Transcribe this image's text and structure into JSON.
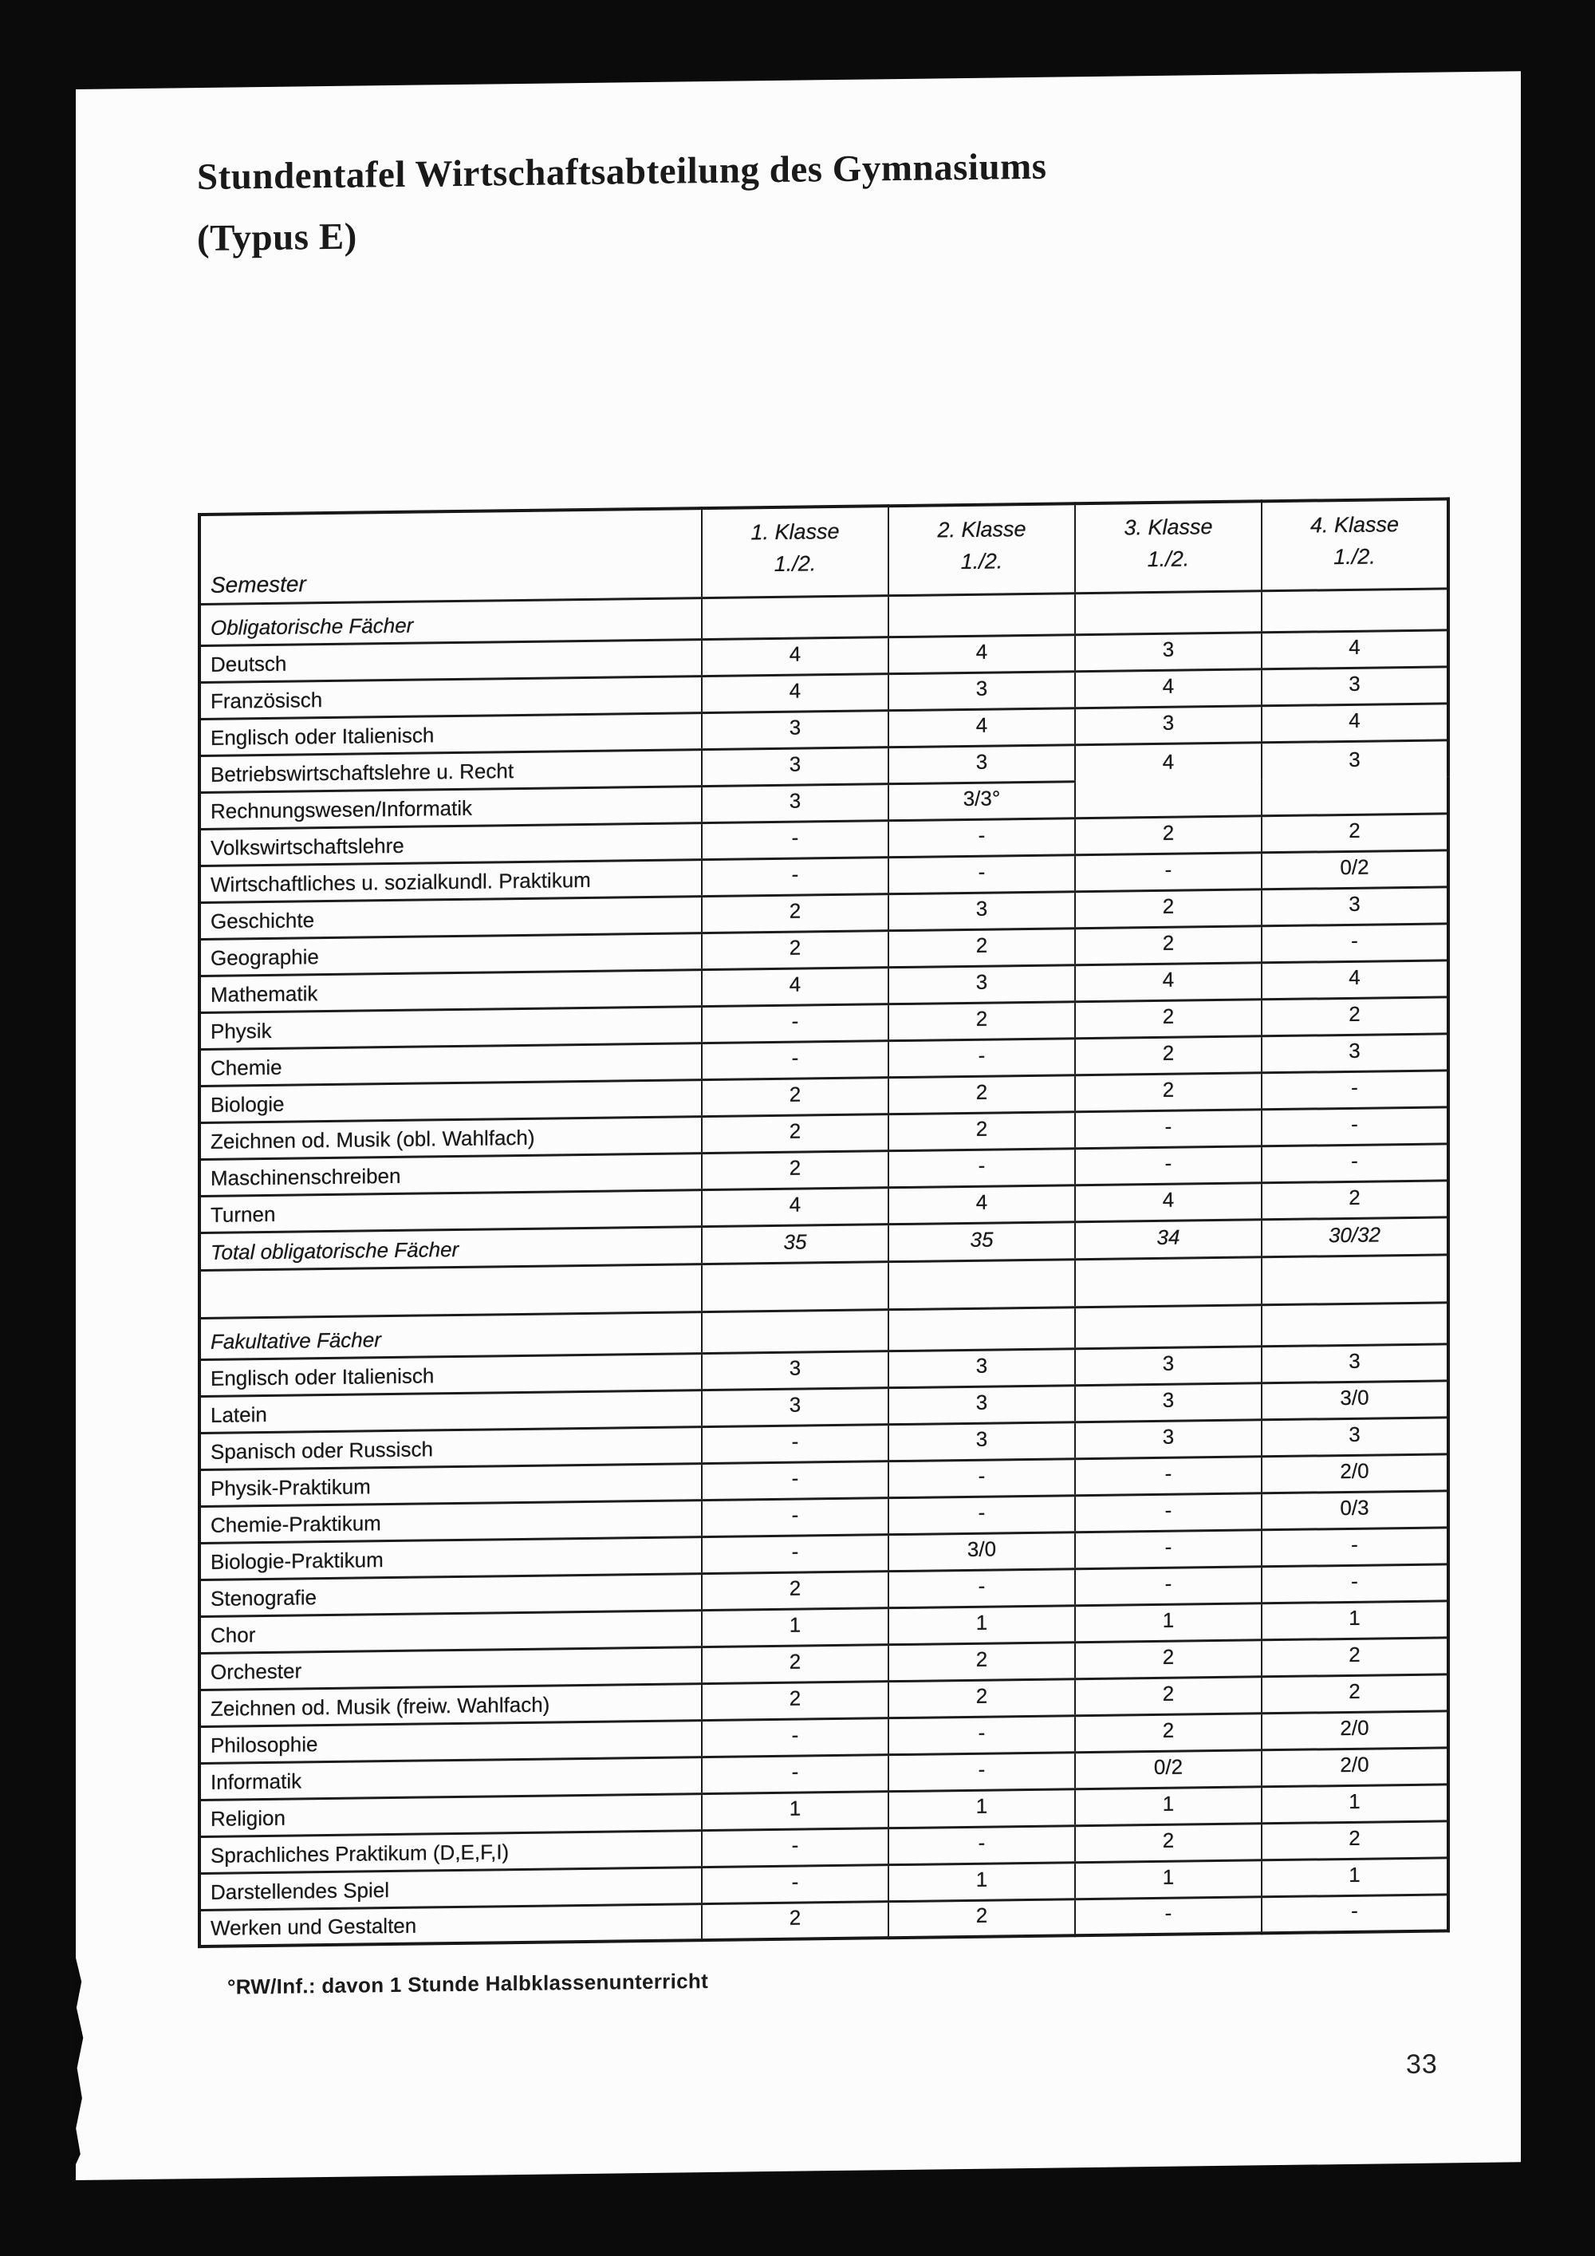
{
  "page": {
    "title_line1": "Stundentafel Wirtschaftsabteilung des Gymnasiums",
    "title_line2": "(Typus E)",
    "footnote": "°RW/Inf.: davon 1 Stunde Halbklassenunterricht",
    "page_number": "33"
  },
  "table": {
    "corner_label": "Semester",
    "columns": [
      {
        "line1": "1. Klasse",
        "line2": "1./2."
      },
      {
        "line1": "2. Klasse",
        "line2": "1./2."
      },
      {
        "line1": "3. Klasse",
        "line2": "1./2."
      },
      {
        "line1": "4. Klasse",
        "line2": "1./2."
      }
    ],
    "rows": [
      {
        "type": "section",
        "label": "Obligatorische Fächer",
        "cells": [
          {},
          {},
          {},
          {}
        ]
      },
      {
        "type": "subject",
        "label": "Deutsch",
        "cells": [
          {
            "v": "4"
          },
          {
            "v": "4"
          },
          {
            "v": "3"
          },
          {
            "v": "4"
          }
        ]
      },
      {
        "type": "subject",
        "label": "Französisch",
        "cells": [
          {
            "v": "4"
          },
          {
            "v": "3"
          },
          {
            "v": "4"
          },
          {
            "v": "3"
          }
        ]
      },
      {
        "type": "subject",
        "label": "Englisch oder Italienisch",
        "cells": [
          {
            "v": "3"
          },
          {
            "v": "4"
          },
          {
            "v": "3"
          },
          {
            "v": "4"
          }
        ]
      },
      {
        "type": "subject",
        "label": "Betriebswirtschaftslehre u. Recht",
        "cells": [
          {
            "v": "3"
          },
          {
            "v": "3"
          },
          {
            "v": "4",
            "rs": 2
          },
          {
            "v": "3",
            "rs": 2
          }
        ]
      },
      {
        "type": "subject",
        "label": "Rechnungswesen/Informatik",
        "cells": [
          {
            "v": "3"
          },
          {
            "v": "3/3°"
          }
        ]
      },
      {
        "type": "subject",
        "label": "Volkswirtschaftslehre",
        "cells": [
          {
            "v": "-"
          },
          {
            "v": "-"
          },
          {
            "v": "2"
          },
          {
            "v": "2"
          }
        ]
      },
      {
        "type": "subject",
        "label": "Wirtschaftliches u. sozialkundl. Praktikum",
        "cells": [
          {
            "v": "-"
          },
          {
            "v": "-"
          },
          {
            "v": "-"
          },
          {
            "v": "0/2"
          }
        ]
      },
      {
        "type": "subject",
        "label": "Geschichte",
        "cells": [
          {
            "v": "2"
          },
          {
            "v": "3"
          },
          {
            "v": "2"
          },
          {
            "v": "3"
          }
        ]
      },
      {
        "type": "subject",
        "label": "Geographie",
        "cells": [
          {
            "v": "2"
          },
          {
            "v": "2"
          },
          {
            "v": "2"
          },
          {
            "v": "-"
          }
        ]
      },
      {
        "type": "subject",
        "label": "Mathematik",
        "cells": [
          {
            "v": "4"
          },
          {
            "v": "3"
          },
          {
            "v": "4"
          },
          {
            "v": "4"
          }
        ]
      },
      {
        "type": "subject",
        "label": "Physik",
        "cells": [
          {
            "v": "-"
          },
          {
            "v": "2"
          },
          {
            "v": "2"
          },
          {
            "v": "2"
          }
        ]
      },
      {
        "type": "subject",
        "label": "Chemie",
        "cells": [
          {
            "v": "-"
          },
          {
            "v": "-"
          },
          {
            "v": "2"
          },
          {
            "v": "3"
          }
        ]
      },
      {
        "type": "subject",
        "label": "Biologie",
        "cells": [
          {
            "v": "2"
          },
          {
            "v": "2"
          },
          {
            "v": "2"
          },
          {
            "v": "-"
          }
        ]
      },
      {
        "type": "subject",
        "label": "Zeichnen od. Musik (obl. Wahlfach)",
        "cells": [
          {
            "v": "2"
          },
          {
            "v": "2"
          },
          {
            "v": "-"
          },
          {
            "v": "-"
          }
        ]
      },
      {
        "type": "subject",
        "label": "Maschinenschreiben",
        "cells": [
          {
            "v": "2"
          },
          {
            "v": "-"
          },
          {
            "v": "-"
          },
          {
            "v": "-"
          }
        ]
      },
      {
        "type": "subject",
        "label": "Turnen",
        "cells": [
          {
            "v": "4"
          },
          {
            "v": "4"
          },
          {
            "v": "4"
          },
          {
            "v": "2"
          }
        ]
      },
      {
        "type": "total",
        "label": "Total  obligatorische Fächer",
        "cells": [
          {
            "v": "35"
          },
          {
            "v": "35"
          },
          {
            "v": "34"
          },
          {
            "v": "30/32"
          }
        ]
      },
      {
        "type": "spacer",
        "label": "",
        "cells": [
          {},
          {},
          {},
          {}
        ]
      },
      {
        "type": "section",
        "label": "Fakultative Fächer",
        "cells": [
          {},
          {},
          {},
          {}
        ]
      },
      {
        "type": "subject",
        "label": "Englisch oder Italienisch",
        "cells": [
          {
            "v": "3"
          },
          {
            "v": "3"
          },
          {
            "v": "3"
          },
          {
            "v": "3"
          }
        ]
      },
      {
        "type": "subject",
        "label": "Latein",
        "cells": [
          {
            "v": "3"
          },
          {
            "v": "3"
          },
          {
            "v": "3"
          },
          {
            "v": "3/0"
          }
        ]
      },
      {
        "type": "subject",
        "label": "Spanisch oder Russisch",
        "cells": [
          {
            "v": "-"
          },
          {
            "v": "3"
          },
          {
            "v": "3"
          },
          {
            "v": "3"
          }
        ]
      },
      {
        "type": "subject",
        "label": "Physik-Praktikum",
        "cells": [
          {
            "v": "-"
          },
          {
            "v": "-"
          },
          {
            "v": "-"
          },
          {
            "v": "2/0"
          }
        ]
      },
      {
        "type": "subject",
        "label": "Chemie-Praktikum",
        "cells": [
          {
            "v": "-"
          },
          {
            "v": "-"
          },
          {
            "v": "-"
          },
          {
            "v": "0/3"
          }
        ]
      },
      {
        "type": "subject",
        "label": "Biologie-Praktikum",
        "cells": [
          {
            "v": "-"
          },
          {
            "v": "3/0"
          },
          {
            "v": "-"
          },
          {
            "v": "-"
          }
        ]
      },
      {
        "type": "subject",
        "label": "Stenografie",
        "cells": [
          {
            "v": "2"
          },
          {
            "v": "-"
          },
          {
            "v": "-"
          },
          {
            "v": "-"
          }
        ]
      },
      {
        "type": "subject",
        "label": "Chor",
        "cells": [
          {
            "v": "1"
          },
          {
            "v": "1"
          },
          {
            "v": "1"
          },
          {
            "v": "1"
          }
        ]
      },
      {
        "type": "subject",
        "label": "Orchester",
        "cells": [
          {
            "v": "2"
          },
          {
            "v": "2"
          },
          {
            "v": "2"
          },
          {
            "v": "2"
          }
        ]
      },
      {
        "type": "subject",
        "label": "Zeichnen od. Musik (freiw. Wahlfach)",
        "cells": [
          {
            "v": "2"
          },
          {
            "v": "2"
          },
          {
            "v": "2"
          },
          {
            "v": "2"
          }
        ]
      },
      {
        "type": "subject",
        "label": "Philosophie",
        "cells": [
          {
            "v": "-"
          },
          {
            "v": "-"
          },
          {
            "v": "2"
          },
          {
            "v": "2/0"
          }
        ]
      },
      {
        "type": "subject",
        "label": "Informatik",
        "cells": [
          {
            "v": "-"
          },
          {
            "v": "-"
          },
          {
            "v": "0/2"
          },
          {
            "v": "2/0"
          }
        ]
      },
      {
        "type": "subject",
        "label": "Religion",
        "cells": [
          {
            "v": "1"
          },
          {
            "v": "1"
          },
          {
            "v": "1"
          },
          {
            "v": "1"
          }
        ]
      },
      {
        "type": "subject",
        "label": "Sprachliches Praktikum (D,E,F,I)",
        "cells": [
          {
            "v": "-"
          },
          {
            "v": "-"
          },
          {
            "v": "2"
          },
          {
            "v": "2"
          }
        ]
      },
      {
        "type": "subject",
        "label": "Darstellendes Spiel",
        "cells": [
          {
            "v": "-"
          },
          {
            "v": "1"
          },
          {
            "v": "1"
          },
          {
            "v": "1"
          }
        ]
      },
      {
        "type": "subject",
        "label": "Werken und Gestalten",
        "cells": [
          {
            "v": "2"
          },
          {
            "v": "2"
          },
          {
            "v": "-"
          },
          {
            "v": "-"
          }
        ]
      }
    ]
  }
}
